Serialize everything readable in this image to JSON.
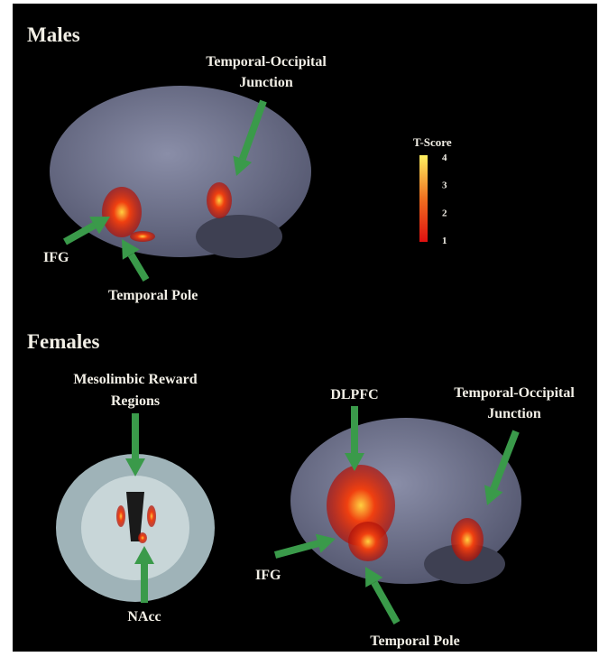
{
  "males": {
    "heading": "Males",
    "labels": {
      "toj": [
        "Temporal-Occipital",
        "Junction"
      ],
      "ifg": "IFG",
      "temporal_pole": "Temporal Pole"
    }
  },
  "colorbar": {
    "title": "T-Score",
    "range": [
      1,
      4
    ],
    "ticks": [
      1,
      2,
      3,
      4
    ]
  },
  "females": {
    "heading": "Females",
    "labels": {
      "mesolimbic": [
        "Mesolimbic Reward",
        "Regions"
      ],
      "nacc": "NAcc",
      "dlpfc": "DLPFC",
      "toj": [
        "Temporal-Occipital",
        "Junction"
      ],
      "ifg": "IFG",
      "temporal_pole": "Temporal Pole"
    }
  }
}
